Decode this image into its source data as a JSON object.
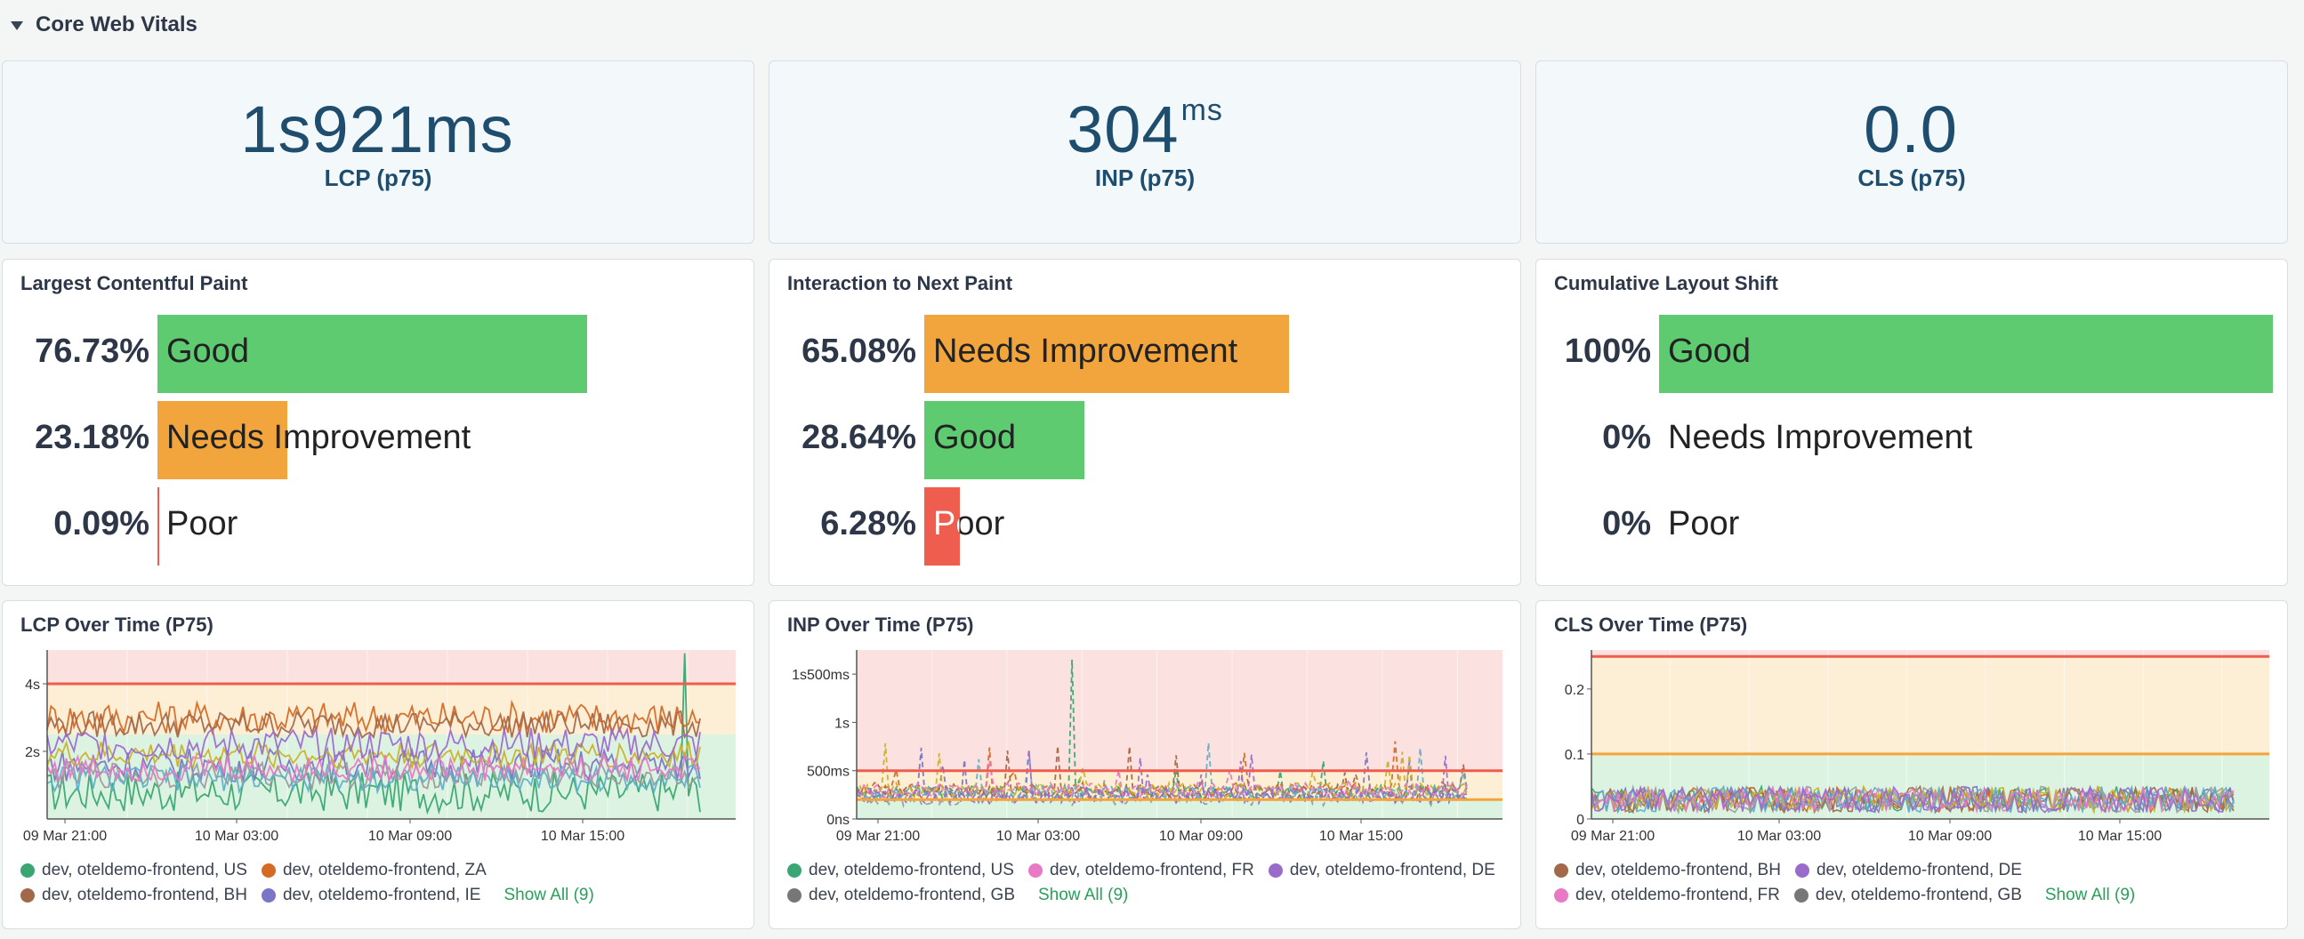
{
  "section": {
    "title": "Core Web Vitals"
  },
  "stats": [
    {
      "value": "1s921ms",
      "unit": "",
      "label": "LCP (p75)"
    },
    {
      "value": "304",
      "unit": "ms",
      "label": "INP (p75)"
    },
    {
      "value": "0.0",
      "unit": "",
      "label": "CLS (p75)"
    }
  ],
  "distributions": [
    {
      "title": "Largest Contentful Paint",
      "rows": [
        {
          "pct": "76.73%",
          "label": "Good",
          "fraction": 0.7673,
          "color": "#5ecb70"
        },
        {
          "pct": "23.18%",
          "label": "Needs Improvement",
          "fraction": 0.2318,
          "color": "#f2a53c"
        },
        {
          "pct": "0.09%",
          "label": "Poor",
          "fraction": 0.0009,
          "color": "#ee5d4d"
        }
      ]
    },
    {
      "title": "Interaction to Next Paint",
      "rows": [
        {
          "pct": "65.08%",
          "label": "Needs Improvement",
          "fraction": 0.6508,
          "color": "#f2a53c"
        },
        {
          "pct": "28.64%",
          "label": "Good",
          "fraction": 0.2864,
          "color": "#5ecb70"
        },
        {
          "pct": "6.28%",
          "label": "Poor",
          "fraction": 0.0628,
          "color": "#ee5d4d"
        }
      ]
    },
    {
      "title": "Cumulative Layout Shift",
      "rows": [
        {
          "pct": "100%",
          "label": "Good",
          "fraction": 1.0,
          "color": "#5ecb70"
        },
        {
          "pct": "0%",
          "label": "Needs Improvement",
          "fraction": 0,
          "color": "#f2a53c"
        },
        {
          "pct": "0%",
          "label": "Poor",
          "fraction": 0,
          "color": "#ee5d4d"
        }
      ]
    }
  ],
  "timeseries": [
    {
      "title": "LCP Over Time (P75)",
      "legend": [
        [
          "dev, oteldemo-frontend, US",
          "dev, oteldemo-frontend, ZA"
        ],
        [
          "dev, oteldemo-frontend, BH",
          "dev, oteldemo-frontend, IE"
        ]
      ],
      "legend_colors": [
        [
          "#3aa672",
          "#d56a24"
        ],
        [
          "#a3684a",
          "#7c74c4"
        ]
      ],
      "show_all": "Show All (9)"
    },
    {
      "title": "INP Over Time (P75)",
      "legend": [
        [
          "dev, oteldemo-frontend, US",
          "dev, oteldemo-frontend, FR",
          "dev, oteldemo-frontend, DE"
        ],
        [
          "dev, oteldemo-frontend, GB"
        ]
      ],
      "legend_colors": [
        [
          "#3aa672",
          "#e879c4",
          "#9b6bcc"
        ],
        [
          "#777777"
        ]
      ],
      "show_all": "Show All (9)"
    },
    {
      "title": "CLS Over Time (P75)",
      "legend": [
        [
          "dev, oteldemo-frontend, BH",
          "dev, oteldemo-frontend, DE"
        ],
        [
          "dev, oteldemo-frontend, FR",
          "dev, oteldemo-frontend, GB"
        ]
      ],
      "legend_colors": [
        [
          "#a3684a",
          "#9b6bcc"
        ],
        [
          "#e879c4",
          "#777777"
        ]
      ],
      "show_all": "Show All (9)"
    }
  ],
  "chart_data": [
    {
      "type": "line",
      "title": "LCP Over Time (P75)",
      "x_ticks": [
        "09 Mar 21:00",
        "10 Mar 03:00",
        "10 Mar 09:00",
        "10 Mar 15:00"
      ],
      "y_ticks": [
        "2s",
        "4s"
      ],
      "ylim": [
        0,
        5
      ],
      "thresholds": [
        {
          "value": 2.5,
          "color": "#5ecb70"
        },
        {
          "value": 4,
          "color": "#ee5d4d"
        }
      ],
      "series": [
        {
          "name": "dev, oteldemo-frontend, US",
          "typical_range": [
            0.3,
            1.5
          ]
        },
        {
          "name": "dev, oteldemo-frontend, ZA",
          "typical_range": [
            2.5,
            3.6
          ]
        },
        {
          "name": "dev, oteldemo-frontend, BH",
          "typical_range": [
            2.4,
            3.2
          ]
        },
        {
          "name": "dev, oteldemo-frontend, IE",
          "typical_range": [
            1.0,
            2.0
          ]
        }
      ]
    },
    {
      "type": "line",
      "title": "INP Over Time (P75)",
      "x_ticks": [
        "09 Mar 21:00",
        "10 Mar 03:00",
        "10 Mar 09:00",
        "10 Mar 15:00"
      ],
      "y_ticks": [
        "0ns",
        "500ms",
        "1s",
        "1s500ms"
      ],
      "ylim": [
        0,
        1.75
      ],
      "thresholds": [
        {
          "value": 0.2,
          "color": "#f2a53c"
        },
        {
          "value": 0.5,
          "color": "#ee5d4d"
        }
      ],
      "series": [
        {
          "name": "dev, oteldemo-frontend, US",
          "typical_range": [
            0.2,
            0.4
          ]
        },
        {
          "name": "dev, oteldemo-frontend, FR",
          "typical_range": [
            0.2,
            0.5
          ]
        },
        {
          "name": "dev, oteldemo-frontend, DE",
          "typical_range": [
            0.2,
            0.4
          ]
        },
        {
          "name": "dev, oteldemo-frontend, GB",
          "typical_range": [
            0.2,
            0.35
          ]
        }
      ]
    },
    {
      "type": "line",
      "title": "CLS Over Time (P75)",
      "x_ticks": [
        "09 Mar 21:00",
        "10 Mar 03:00",
        "10 Mar 09:00",
        "10 Mar 15:00"
      ],
      "y_ticks": [
        "0",
        "0.1",
        "0.2"
      ],
      "ylim": [
        0,
        0.26
      ],
      "thresholds": [
        {
          "value": 0.1,
          "color": "#f2a53c"
        },
        {
          "value": 0.25,
          "color": "#ee5d4d"
        }
      ],
      "series": [
        {
          "name": "dev, oteldemo-frontend, BH",
          "typical_range": [
            0.01,
            0.05
          ]
        },
        {
          "name": "dev, oteldemo-frontend, DE",
          "typical_range": [
            0.01,
            0.05
          ]
        },
        {
          "name": "dev, oteldemo-frontend, FR",
          "typical_range": [
            0.01,
            0.05
          ]
        },
        {
          "name": "dev, oteldemo-frontend, GB",
          "typical_range": [
            0.01,
            0.05
          ]
        }
      ]
    }
  ]
}
